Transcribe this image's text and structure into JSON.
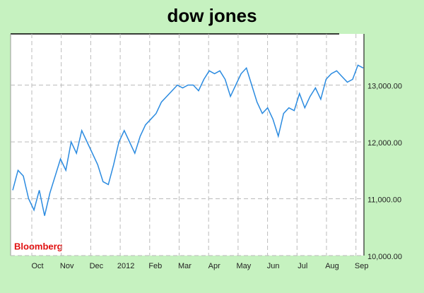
{
  "chart_data": {
    "type": "line",
    "title": "dow jones",
    "source": "Bloomberg",
    "xtick_labels": [
      "Oct",
      "Nov",
      "Dec",
      "2012",
      "Feb",
      "Mar",
      "Apr",
      "May",
      "Jun",
      "Jul",
      "Aug",
      "Sep"
    ],
    "color": "#2b8be0",
    "values": [
      11150,
      11500,
      11400,
      11000,
      10800,
      11150,
      10700,
      11100,
      11400,
      11700,
      11500,
      12000,
      11800,
      12200,
      12000,
      11800,
      11600,
      11300,
      11250,
      11600,
      12000,
      12200,
      12000,
      11800,
      12100,
      12300,
      12400,
      12500,
      12700,
      12800,
      12900,
      13000,
      12950,
      13000,
      13000,
      12900,
      13100,
      13250,
      13200,
      13250,
      13100,
      12800,
      13000,
      13200,
      13300,
      13000,
      12700,
      12500,
      12600,
      12400,
      12100,
      12500,
      12600,
      12550,
      12850,
      12600,
      12800,
      12950,
      12750,
      13100,
      13200,
      13250,
      13150,
      13050,
      13100,
      13350,
      13300
    ],
    "ylim": [
      10000,
      13900
    ],
    "yticks": [
      {
        "value": 10000,
        "label": "10,000.00"
      },
      {
        "value": 11000,
        "label": "11,000.00"
      },
      {
        "value": 12000,
        "label": "12,000.00"
      },
      {
        "value": 13000,
        "label": "13,000.00"
      }
    ],
    "grid": true
  }
}
